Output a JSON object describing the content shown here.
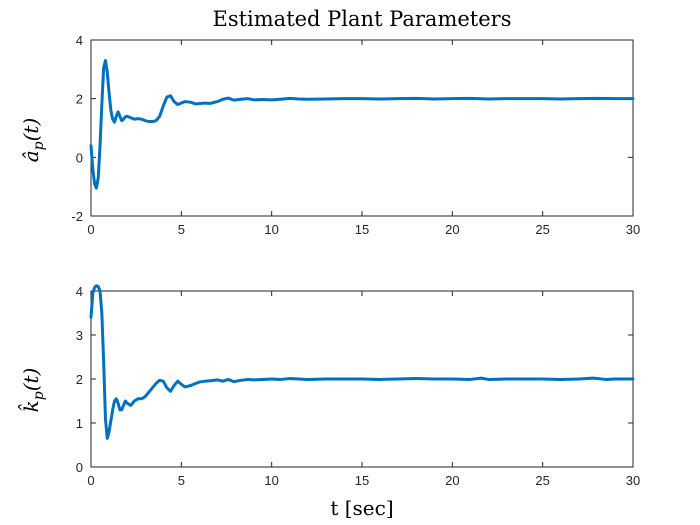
{
  "figure": {
    "title": "Estimated Plant Parameters",
    "xlabel": "t [sec]"
  },
  "chart_data": [
    {
      "type": "line",
      "ylabel": "â_p(t)",
      "xlim": [
        0,
        30
      ],
      "ylim": [
        -2,
        4
      ],
      "xticks": [
        0,
        5,
        10,
        15,
        20,
        25,
        30
      ],
      "yticks": [
        -2,
        0,
        2,
        4
      ],
      "grid": false,
      "series": [
        {
          "color": "#0072BD",
          "x": [
            0,
            0.1,
            0.2,
            0.3,
            0.4,
            0.5,
            0.6,
            0.7,
            0.8,
            0.9,
            1.0,
            1.1,
            1.2,
            1.3,
            1.4,
            1.5,
            1.6,
            1.7,
            1.8,
            1.9,
            2.0,
            2.2,
            2.4,
            2.6,
            2.8,
            3.0,
            3.2,
            3.4,
            3.6,
            3.8,
            4.0,
            4.2,
            4.4,
            4.6,
            4.8,
            5.0,
            5.2,
            5.5,
            5.8,
            6.0,
            6.3,
            6.6,
            7.0,
            7.3,
            7.6,
            7.9,
            8.3,
            8.7,
            9.0,
            9.5,
            10.0,
            10.5,
            11.0,
            11.5,
            12.0,
            13.0,
            14.0,
            15.0,
            16.0,
            17.0,
            18.0,
            19.0,
            20.0,
            21.0,
            22.0,
            23.0,
            24.0,
            25.0,
            26.0,
            27.0,
            28.0,
            29.0,
            30.0
          ],
          "y": [
            0.4,
            -0.4,
            -0.9,
            -1.05,
            -0.7,
            0.4,
            1.8,
            3.05,
            3.3,
            2.9,
            2.2,
            1.6,
            1.3,
            1.2,
            1.4,
            1.55,
            1.4,
            1.25,
            1.3,
            1.38,
            1.4,
            1.35,
            1.3,
            1.32,
            1.3,
            1.25,
            1.22,
            1.22,
            1.25,
            1.4,
            1.75,
            2.05,
            2.1,
            1.9,
            1.8,
            1.85,
            1.9,
            1.88,
            1.82,
            1.83,
            1.85,
            1.84,
            1.9,
            1.98,
            2.02,
            1.95,
            1.98,
            2.0,
            1.96,
            1.97,
            1.96,
            1.98,
            2.01,
            1.99,
            1.98,
            1.99,
            2.0,
            2.0,
            1.99,
            2.0,
            2.01,
            1.99,
            2.0,
            2.01,
            1.99,
            2.0,
            2.0,
            2.0,
            1.99,
            2.0,
            2.01,
            2.0,
            2.0
          ]
        }
      ]
    },
    {
      "type": "line",
      "ylabel": "k̂_p(t)",
      "xlim": [
        0,
        30
      ],
      "ylim": [
        0,
        4
      ],
      "xticks": [
        0,
        5,
        10,
        15,
        20,
        25,
        30
      ],
      "yticks": [
        0,
        1,
        2,
        3,
        4
      ],
      "grid": false,
      "series": [
        {
          "color": "#0072BD",
          "x": [
            0,
            0.1,
            0.2,
            0.3,
            0.4,
            0.5,
            0.6,
            0.7,
            0.8,
            0.9,
            1.0,
            1.1,
            1.2,
            1.3,
            1.4,
            1.5,
            1.6,
            1.7,
            1.8,
            1.9,
            2.0,
            2.2,
            2.4,
            2.6,
            2.8,
            3.0,
            3.2,
            3.4,
            3.6,
            3.8,
            4.0,
            4.2,
            4.4,
            4.6,
            4.8,
            5.0,
            5.2,
            5.5,
            5.8,
            6.0,
            6.3,
            6.6,
            7.0,
            7.3,
            7.6,
            7.9,
            8.3,
            8.7,
            9.0,
            9.5,
            10.0,
            10.5,
            11.0,
            11.5,
            12.0,
            13.0,
            14.0,
            15.0,
            16.0,
            17.0,
            18.0,
            19.0,
            20.0,
            21.0,
            21.6,
            22.0,
            23.0,
            24.0,
            25.0,
            26.0,
            27.0,
            27.8,
            28.5,
            29.0,
            30.0
          ],
          "y": [
            3.4,
            3.95,
            4.08,
            4.12,
            4.1,
            4.0,
            3.5,
            2.4,
            1.1,
            0.65,
            0.8,
            1.05,
            1.3,
            1.5,
            1.55,
            1.45,
            1.3,
            1.3,
            1.4,
            1.5,
            1.45,
            1.4,
            1.5,
            1.55,
            1.55,
            1.6,
            1.7,
            1.8,
            1.9,
            1.97,
            1.95,
            1.8,
            1.72,
            1.85,
            1.95,
            1.88,
            1.82,
            1.85,
            1.9,
            1.93,
            1.95,
            1.96,
            1.98,
            1.95,
            1.99,
            1.94,
            1.97,
            1.99,
            1.98,
            1.99,
            2.0,
            1.99,
            2.01,
            2.0,
            1.99,
            2.0,
            2.0,
            2.0,
            1.99,
            2.0,
            2.01,
            2.0,
            2.0,
            1.99,
            2.02,
            1.99,
            2.0,
            2.0,
            2.0,
            1.99,
            2.0,
            2.02,
            1.99,
            2.0,
            2.0
          ]
        }
      ]
    }
  ]
}
